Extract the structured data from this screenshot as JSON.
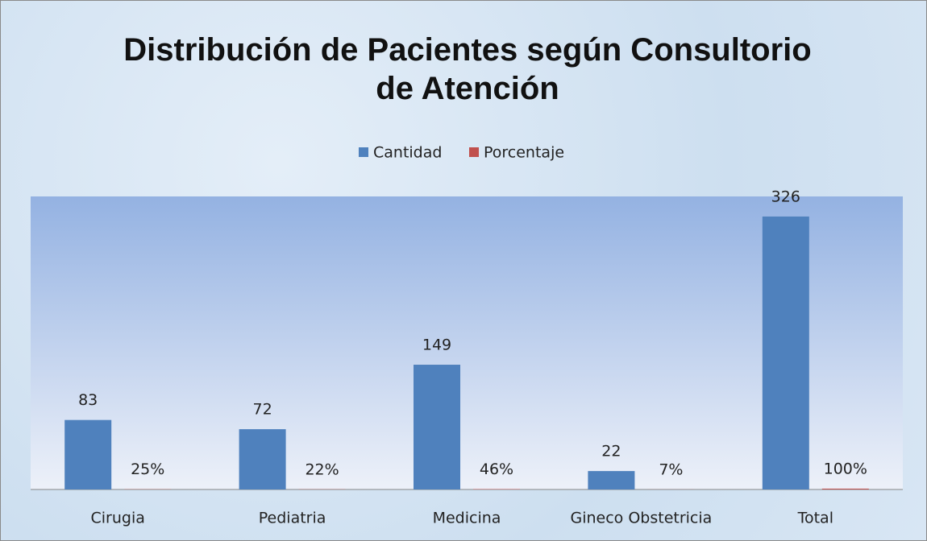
{
  "chart_data": {
    "type": "bar",
    "title": "Distribución de Pacientes según Consultorio de Atención",
    "categories": [
      "Cirugia",
      "Pediatria",
      "Medicina",
      "Gineco Obstetricia",
      "Total"
    ],
    "series": [
      {
        "name": "Cantidad",
        "color": "#4f81bd",
        "values": [
          83,
          72,
          149,
          22,
          326
        ]
      },
      {
        "name": "Porcentaje",
        "color": "#c0504d",
        "values": [
          0.25,
          0.22,
          0.46,
          0.07,
          1.0
        ],
        "value_labels": [
          "25%",
          "22%",
          "46%",
          "7%",
          "100%"
        ]
      }
    ],
    "ylim": [
      0,
      350
    ],
    "legend": "top"
  }
}
